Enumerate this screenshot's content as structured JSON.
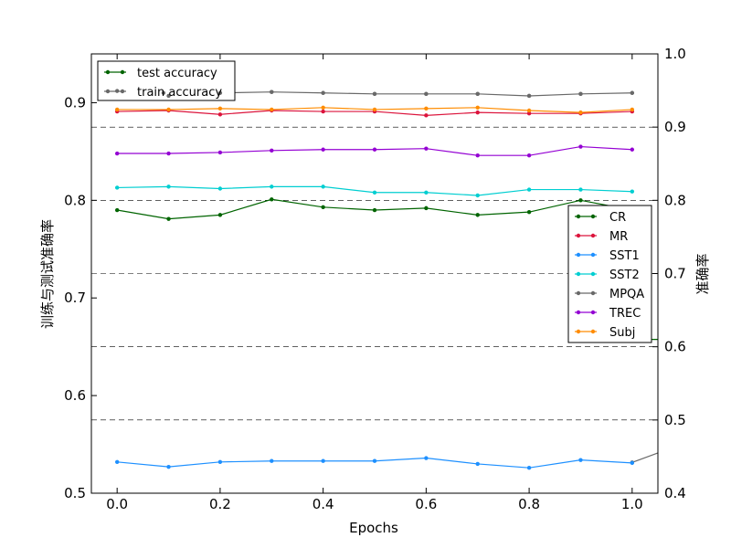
{
  "chart_data": {
    "type": "line",
    "xlabel": "Epochs",
    "ylabel": "训练与测试准确率",
    "ylabel_right": "准确率",
    "x": [
      0.0,
      0.1,
      0.2,
      0.3,
      0.4,
      0.5,
      0.6,
      0.7,
      0.8,
      0.9,
      1.0
    ],
    "xlim": [
      -0.05,
      1.05
    ],
    "ylim": [
      0.5,
      0.95
    ],
    "ylim_right": [
      0.4,
      1.0
    ],
    "x_ticks": [
      "0.0",
      "0.2",
      "0.4",
      "0.6",
      "0.8",
      "1.0"
    ],
    "y_ticks": [
      "0.5",
      "0.6",
      "0.7",
      "0.8",
      "0.9"
    ],
    "y_ticks_right": [
      "0.4",
      "0.5",
      "0.6",
      "0.7",
      "0.8",
      "0.9",
      "1.0"
    ],
    "grid_right": [
      0.5,
      0.6,
      0.7,
      0.8,
      0.9
    ],
    "series": [
      {
        "name": "CR",
        "color": "#006400",
        "values": [
          0.79,
          0.781,
          0.785,
          0.801,
          0.793,
          0.79,
          0.792,
          0.785,
          0.788,
          0.8,
          0.79
        ]
      },
      {
        "name": "MR",
        "color": "#dc143c",
        "values": [
          0.891,
          0.892,
          0.888,
          0.892,
          0.891,
          0.891,
          0.887,
          0.89,
          0.889,
          0.889,
          0.891
        ]
      },
      {
        "name": "SST1",
        "color": "#1e90ff",
        "values": [
          0.532,
          0.527,
          0.532,
          0.533,
          0.533,
          0.533,
          0.536,
          0.53,
          0.526,
          0.534,
          0.531
        ]
      },
      {
        "name": "SST2",
        "color": "#00ced1",
        "values": [
          0.813,
          0.814,
          0.812,
          0.814,
          0.814,
          0.808,
          0.808,
          0.805,
          0.811,
          0.811,
          0.809
        ]
      },
      {
        "name": "MPQA",
        "color": "#696969",
        "values": [
          0.912,
          0.907,
          0.91,
          0.911,
          0.91,
          0.909,
          0.909,
          0.909,
          0.907,
          0.909,
          0.91
        ]
      },
      {
        "name": "TREC",
        "color": "#9400d3",
        "values": [
          0.848,
          0.848,
          0.849,
          0.851,
          0.852,
          0.852,
          0.853,
          0.846,
          0.846,
          0.855,
          0.852
        ]
      },
      {
        "name": "Subj",
        "color": "#ff8c00",
        "values": [
          0.893,
          0.893,
          0.894,
          0.893,
          0.895,
          0.893,
          0.894,
          0.895,
          0.892,
          0.89,
          0.893
        ]
      }
    ],
    "right_partial": [
      {
        "color": "#006400",
        "x": [
          1.0,
          1.05
        ],
        "values": [
          0.61,
          0.61
        ]
      },
      {
        "color": "#696969",
        "x": [
          1.0,
          1.05
        ],
        "values": [
          0.442,
          0.455
        ]
      }
    ],
    "legend_accuracy": {
      "placement": "top-left",
      "entries": [
        {
          "label": "test accuracy",
          "color": "#006400"
        },
        {
          "label": "train accuracy",
          "color": "#696969"
        }
      ],
      "train_points_x": [
        0.0,
        0.09,
        0.1,
        0.2,
        0.3,
        0.4,
        0.5,
        0.6,
        0.7,
        0.8,
        0.9,
        1.0
      ],
      "train_points_y": [
        0.912,
        0.91,
        0.907,
        0.91,
        0.911,
        0.91,
        0.909,
        0.909,
        0.909,
        0.907,
        0.909,
        0.91
      ]
    },
    "legend_datasets": {
      "placement": "right",
      "entries": [
        "CR",
        "MR",
        "SST1",
        "SST2",
        "MPQA",
        "TREC",
        "Subj"
      ]
    }
  }
}
